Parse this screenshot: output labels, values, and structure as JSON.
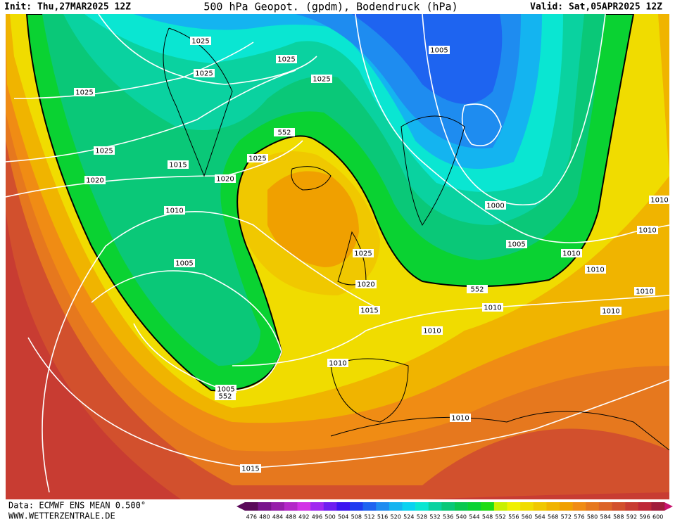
{
  "header": {
    "init": "Init: Thu,27MAR2025 12Z",
    "title": "500 hPa Geopot. (gpdm), Bodendruck (hPa)",
    "valid": "Valid: Sat,05APR2025 12Z"
  },
  "footer": {
    "data": "Data: ECMWF ENS MEAN 0.500°",
    "site": "WWW.WETTERZENTRALE.DE"
  },
  "map": {
    "contour_labels": [
      1025,
      1025,
      1025,
      1025,
      1025,
      1005,
      552,
      1025,
      1025,
      1015,
      1020,
      1020,
      1010,
      1000,
      1005,
      1005,
      1010,
      1010,
      1025,
      1010,
      1010,
      1020,
      552,
      1010,
      1015,
      1010,
      1010,
      1010,
      1010,
      1005,
      552,
      1010,
      1015
    ]
  },
  "scale": {
    "labels": [
      476,
      480,
      484,
      488,
      492,
      496,
      500,
      504,
      508,
      512,
      516,
      520,
      524,
      528,
      532,
      536,
      540,
      544,
      548,
      552,
      556,
      560,
      564,
      568,
      572,
      576,
      580,
      584,
      588,
      592,
      596,
      600
    ],
    "colors": [
      "#5a0a5a",
      "#78148c",
      "#961eaa",
      "#b428c8",
      "#d232e6",
      "#a028f0",
      "#6e1ef0",
      "#3c14f0",
      "#1e3cf0",
      "#1e64f0",
      "#1e8cf0",
      "#14b4f0",
      "#0ad2f0",
      "#0ae6d2",
      "#0ad2a0",
      "#0ac878",
      "#0ac850",
      "#0ad232",
      "#1edc14",
      "#c8f000",
      "#f0f000",
      "#f0dc00",
      "#f0c800",
      "#f0b400",
      "#f0a000",
      "#f08c14",
      "#e6781e",
      "#dc6428",
      "#d2502d",
      "#c83c32",
      "#be2837",
      "#a01e3c"
    ]
  }
}
